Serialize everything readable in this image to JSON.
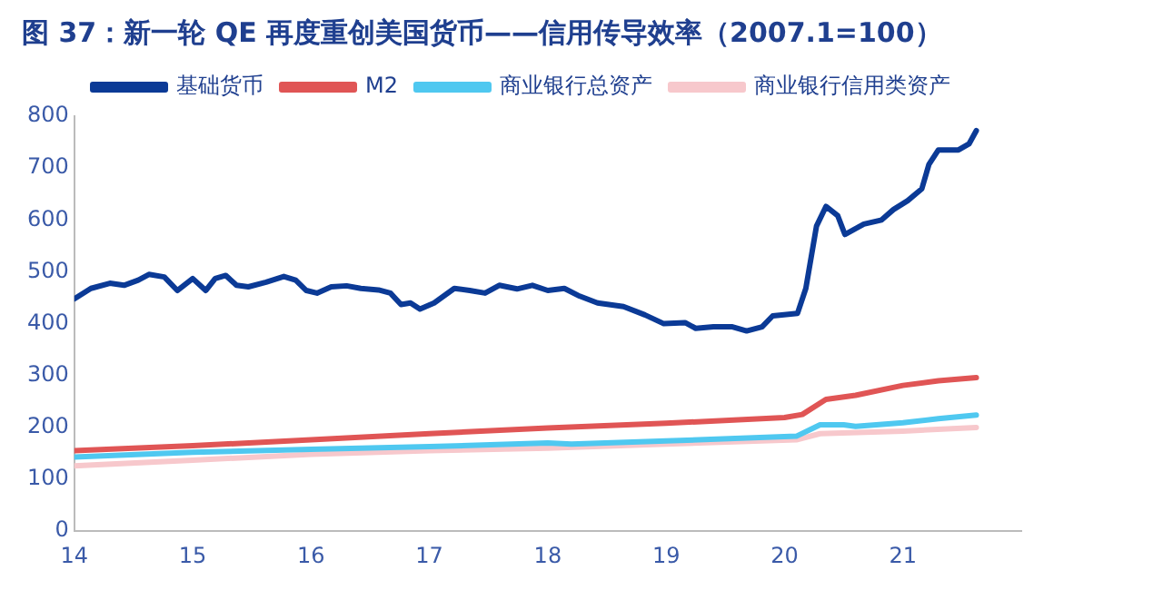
{
  "chart_data": {
    "type": "line",
    "title": "图 37：新一轮 QE 再度重创美国货币——信用传导效率（2007.1=100）",
    "xlim": [
      14,
      22
    ],
    "xticks": [
      14,
      15,
      16,
      17,
      18,
      19,
      20,
      21
    ],
    "ylim": [
      0,
      800
    ],
    "yticks": [
      0,
      100,
      200,
      300,
      400,
      500,
      600,
      700,
      800
    ],
    "grid": false,
    "legend": "top",
    "marker": "none",
    "line_style": "solid",
    "series": [
      {
        "name": "基础货币",
        "color": "#0b3a96",
        "x": [
          14.0,
          14.14,
          14.3,
          14.42,
          14.54,
          14.63,
          14.76,
          14.87,
          15.0,
          15.11,
          15.19,
          15.28,
          15.37,
          15.47,
          15.62,
          15.77,
          15.87,
          15.96,
          16.05,
          16.17,
          16.3,
          16.42,
          16.57,
          16.67,
          16.76,
          16.84,
          16.92,
          17.04,
          17.21,
          17.34,
          17.47,
          17.59,
          17.74,
          17.87,
          18.0,
          18.14,
          18.27,
          18.42,
          18.64,
          18.82,
          18.98,
          19.16,
          19.25,
          19.4,
          19.56,
          19.68,
          19.81,
          19.9,
          20.11,
          20.18,
          20.27,
          20.35,
          20.45,
          20.51,
          20.67,
          20.82,
          20.92,
          21.04,
          21.16,
          21.22,
          21.3,
          21.47,
          21.56,
          21.62
        ],
        "values": [
          448,
          468,
          478,
          474,
          484,
          495,
          490,
          464,
          487,
          464,
          487,
          493,
          474,
          471,
          480,
          491,
          484,
          464,
          459,
          471,
          473,
          468,
          465,
          459,
          437,
          440,
          428,
          440,
          468,
          464,
          459,
          474,
          467,
          474,
          464,
          468,
          453,
          440,
          433,
          417,
          400,
          402,
          391,
          394,
          394,
          386,
          394,
          415,
          420,
          468,
          588,
          626,
          608,
          572,
          592,
          600,
          620,
          637,
          660,
          707,
          735,
          735,
          747,
          772
        ]
      },
      {
        "name": "M2",
        "color": "#e05555",
        "x": [
          14,
          15,
          16,
          17,
          18,
          19,
          20,
          20.15,
          20.35,
          20.6,
          21,
          21.3,
          21.62
        ],
        "values": [
          155,
          165,
          176,
          188,
          199,
          208,
          219,
          225,
          254,
          262,
          281,
          290,
          296
        ]
      },
      {
        "name": "商业银行总资产",
        "color": "#4fc8f0",
        "x": [
          14,
          15,
          16,
          17,
          18,
          18.2,
          19,
          20.1,
          20.3,
          20.5,
          20.6,
          21,
          21.3,
          21.62
        ],
        "values": [
          143,
          152,
          158,
          163,
          170,
          168,
          174,
          183,
          205,
          205,
          202,
          209,
          217,
          224
        ]
      },
      {
        "name": "商业银行信用类资产",
        "color": "#f7c8cc",
        "x": [
          14,
          15,
          16,
          17,
          18,
          19,
          20.1,
          20.3,
          21,
          21.62
        ],
        "values": [
          126,
          137,
          148,
          155,
          160,
          168,
          176,
          188,
          193,
          200
        ]
      }
    ]
  }
}
